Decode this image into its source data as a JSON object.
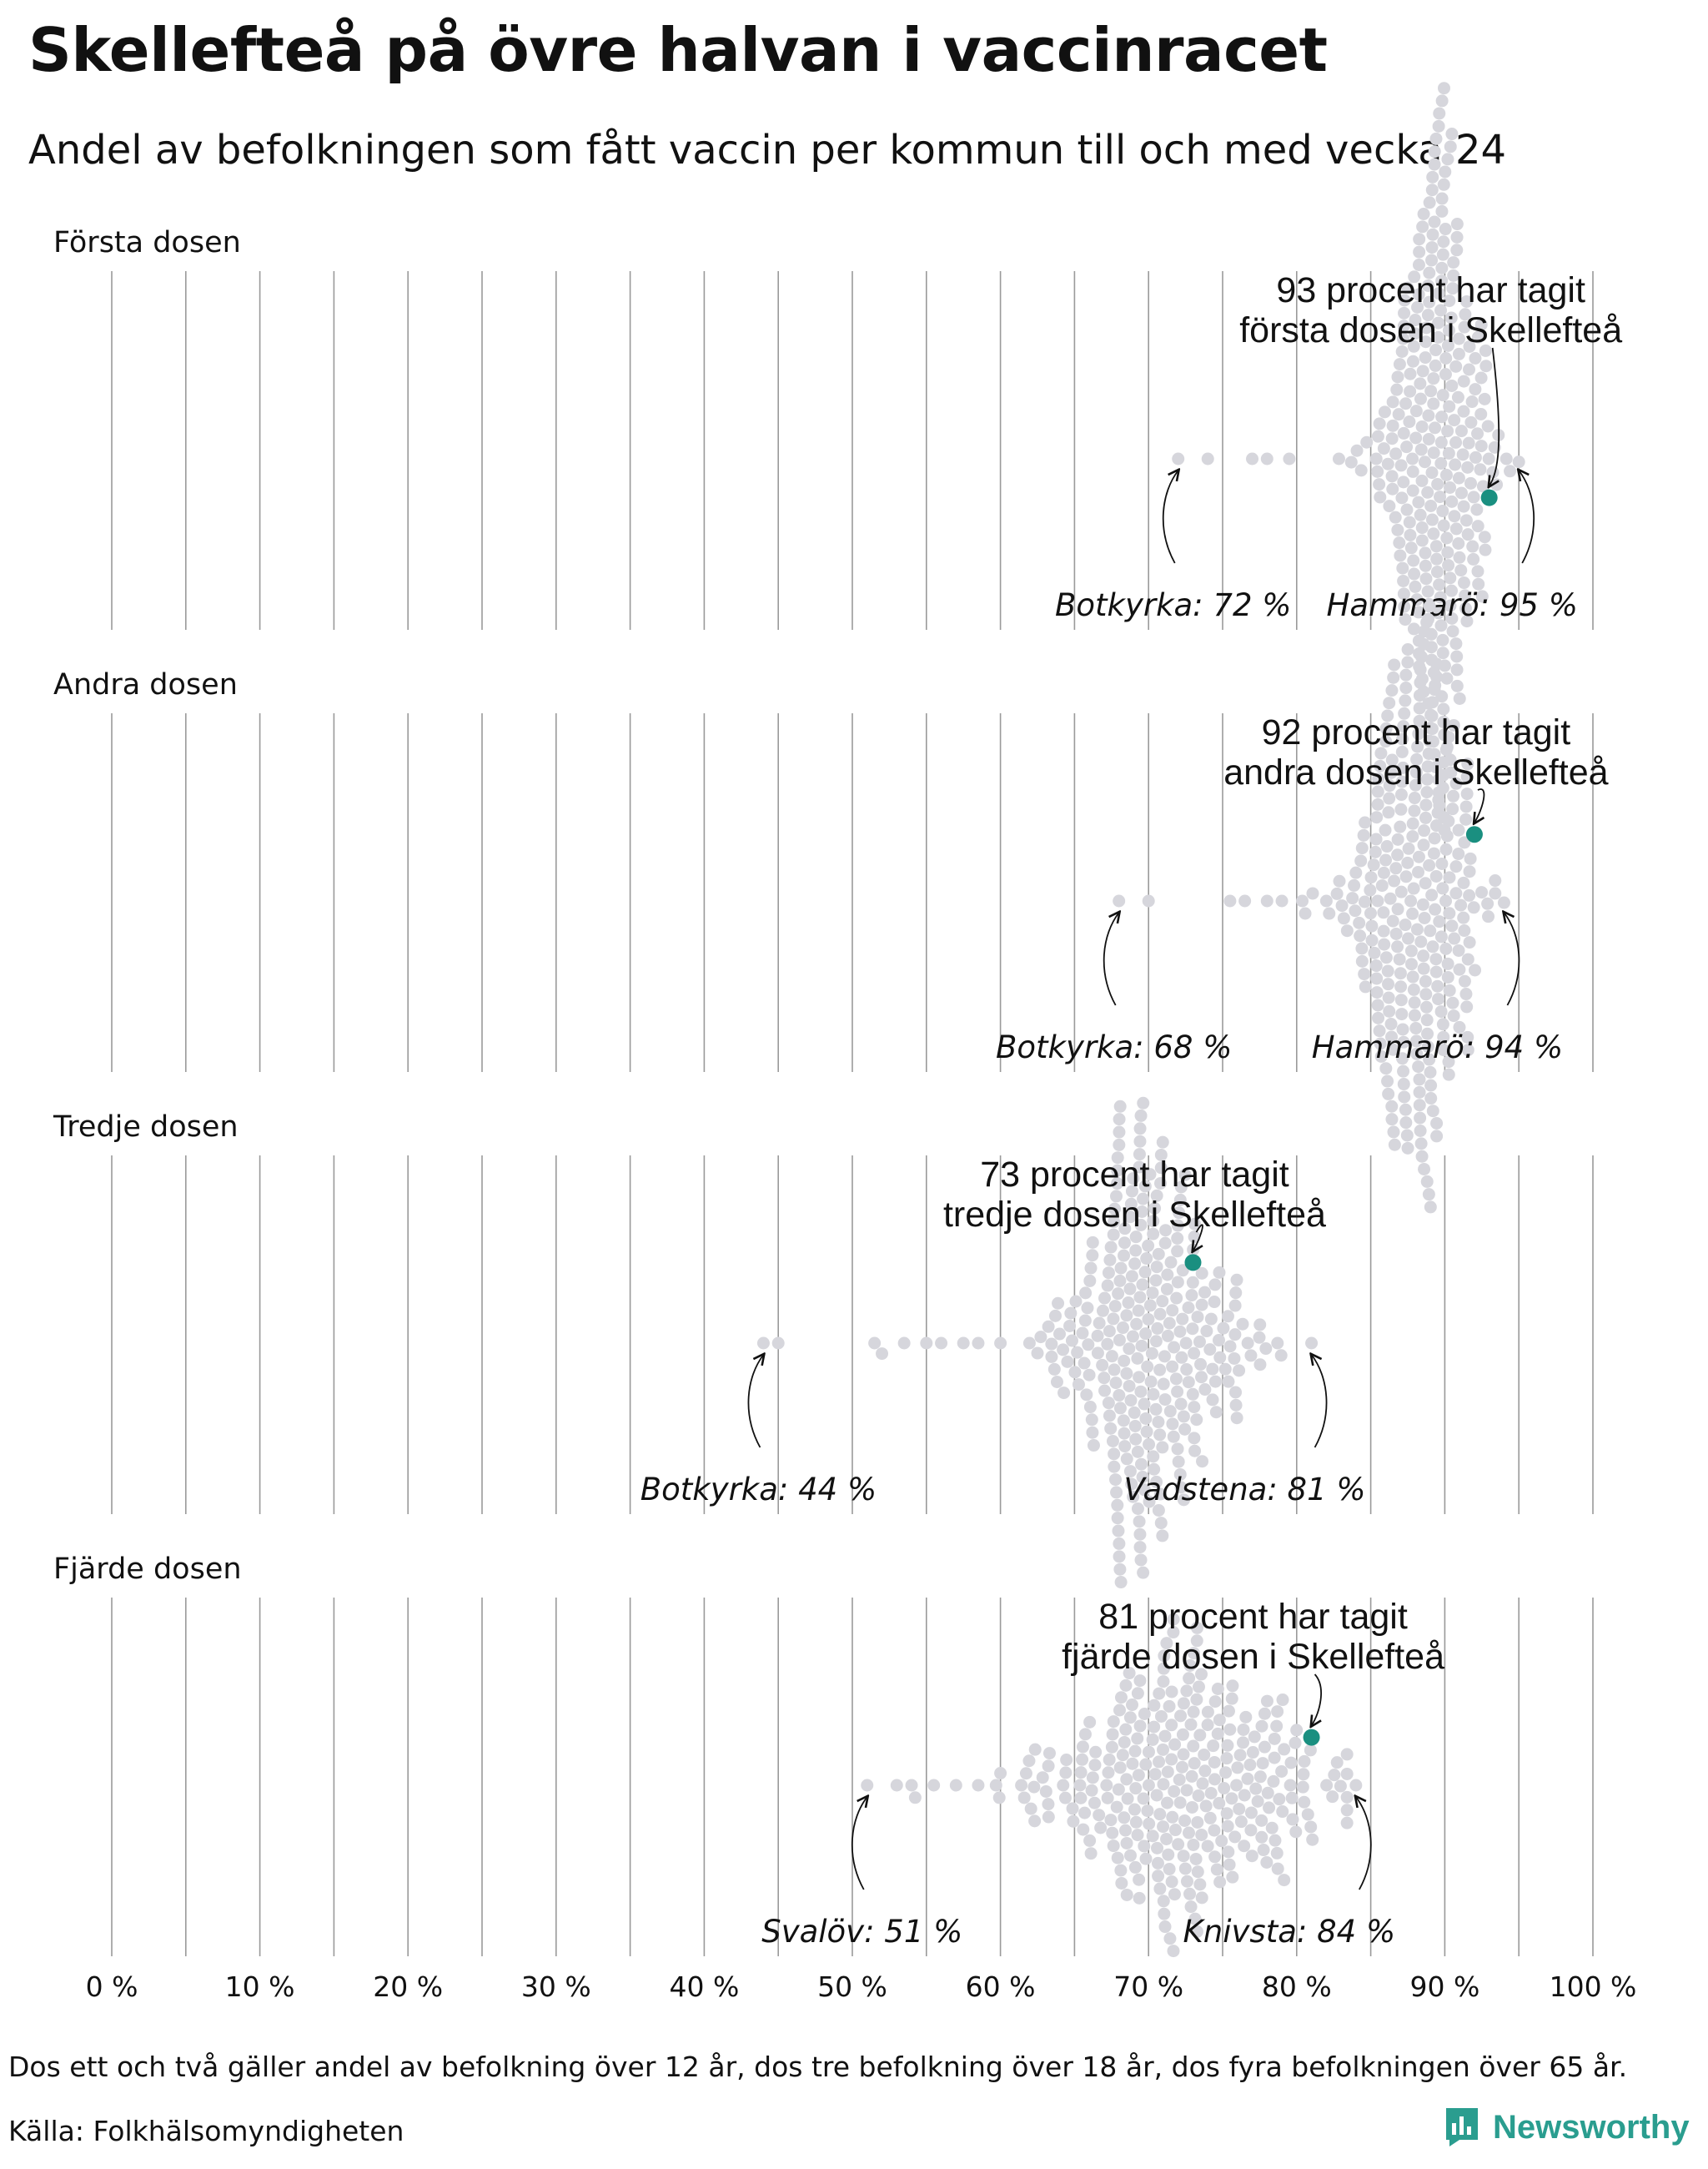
{
  "title": "Skellefteå på övre halvan i vaccinracet",
  "subtitle": "Andel av befolkningen som fått vaccin per kommun till och med vecka 24",
  "footnote": "Dos ett och två gäller andel av befolkning över 12 år, dos tre befolkning över 18 år, dos fyra befolkningen över 65 år.",
  "source": "Källa: Folkhälsomyndigheten",
  "brand": "Newsworthy",
  "colors": {
    "dot": "#d6d6dc",
    "highlight": "#1a8f80",
    "grid": "#9a9a9a",
    "brand": "#2a9d8f"
  },
  "chart_data": {
    "type": "scatter",
    "subtype": "beeswarm",
    "xlim": [
      0,
      100
    ],
    "x_ticks": [
      0,
      10,
      20,
      30,
      40,
      50,
      60,
      70,
      80,
      90,
      100
    ],
    "x_tick_labels": [
      "0 %",
      "10 %",
      "20 %",
      "30 %",
      "40 %",
      "50 %",
      "60 %",
      "70 %",
      "80 %",
      "90 %",
      "100 %"
    ],
    "gridlines_every": 5,
    "panels": [
      {
        "label": "Första dosen",
        "highlight": {
          "value": 93,
          "line1": "93 procent har tagit",
          "line2": "första dosen i Skellefteå"
        },
        "min": {
          "value": 72,
          "label": "Botkyrka: 72 %"
        },
        "max": {
          "value": 95,
          "label": "Hammarö: 95 %"
        },
        "distribution": {
          "mean": 89.5,
          "sd": 1.9
        },
        "extra_points": [
          74,
          77,
          78,
          79.5
        ]
      },
      {
        "label": "Andra dosen",
        "highlight": {
          "value": 92,
          "line1": "92 procent har tagit",
          "line2": "andra dosen i Skellefteå"
        },
        "min": {
          "value": 68,
          "label": "Botkyrka: 68 %"
        },
        "max": {
          "value": 94,
          "label": "Hammarö: 94 %"
        },
        "distribution": {
          "mean": 88,
          "sd": 2.3
        },
        "extra_points": [
          70,
          75.5,
          76.5,
          78,
          79
        ]
      },
      {
        "label": "Tredje dosen",
        "highlight": {
          "value": 73,
          "line1": "73 procent har tagit",
          "line2": "tredje dosen i Skellefteå"
        },
        "min": {
          "value": 44,
          "label": "Botkyrka: 44 %"
        },
        "max": {
          "value": 81,
          "label": "Vadstena: 81 %"
        },
        "distribution": {
          "mean": 70,
          "sd": 3.4
        },
        "extra_points": [
          45,
          51.5,
          52,
          53.5,
          55,
          56,
          57.5,
          58.5,
          60
        ]
      },
      {
        "label": "Fjärde dosen",
        "highlight": {
          "value": 81,
          "line1": "81 procent har tagit",
          "line2": "fjärde dosen i Skellefteå"
        },
        "min": {
          "value": 51,
          "label": "Svalöv: 51 %"
        },
        "max": {
          "value": 84,
          "label": "Knivsta: 84 %"
        },
        "distribution": {
          "mean": 72,
          "sd": 5.3
        },
        "extra_points": [
          53,
          54,
          55.5,
          57,
          58.5,
          60
        ]
      }
    ]
  }
}
